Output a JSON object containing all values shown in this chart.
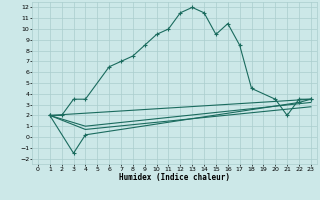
{
  "xlabel": "Humidex (Indice chaleur)",
  "xlim": [
    -0.5,
    23.5
  ],
  "ylim": [
    -2.5,
    12.5
  ],
  "bg_color": "#cce8e8",
  "line_color": "#1a6b5e",
  "grid_color": "#aacece",
  "line1_x": [
    1,
    2,
    3,
    4,
    6,
    7,
    8,
    9,
    10,
    11,
    12,
    13,
    14,
    15,
    16,
    17,
    18,
    20,
    21,
    22,
    23
  ],
  "line1_y": [
    2,
    2,
    3.5,
    3.5,
    6.5,
    7,
    7.5,
    8.5,
    9.5,
    10,
    11.5,
    12,
    11.5,
    9.5,
    10.5,
    8.5,
    4.5,
    3.5,
    2,
    3.5,
    3.5
  ],
  "line2_x": [
    1,
    3,
    4,
    22,
    23
  ],
  "line2_y": [
    2,
    -1.5,
    0.2,
    3.2,
    3.5
  ],
  "line3_x": [
    1,
    4,
    23
  ],
  "line3_y": [
    2,
    1.0,
    3.2
  ],
  "line4_x": [
    1,
    4,
    23
  ],
  "line4_y": [
    2,
    0.7,
    2.8
  ],
  "line5_x": [
    1,
    23
  ],
  "line5_y": [
    2,
    3.5
  ]
}
